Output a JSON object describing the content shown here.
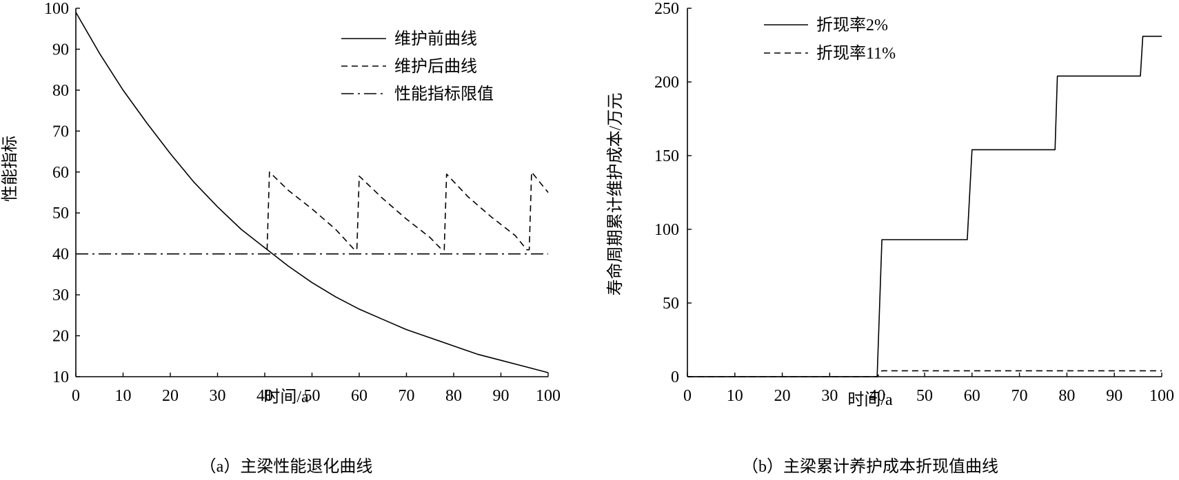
{
  "chart_data": [
    {
      "type": "line",
      "caption": "（a）主梁性能退化曲线",
      "xlabel": "时间/a",
      "ylabel": "性能指标",
      "xlim": [
        0,
        100
      ],
      "ylim": [
        10,
        100
      ],
      "xticks": [
        0,
        10,
        20,
        30,
        40,
        50,
        60,
        70,
        80,
        90,
        100
      ],
      "yticks": [
        10,
        20,
        30,
        40,
        50,
        60,
        70,
        80,
        90,
        100
      ],
      "grid": false,
      "legend": "top-right",
      "series": [
        {
          "name": "维护前曲线",
          "style": "solid",
          "x": [
            0,
            5,
            10,
            15,
            20,
            25,
            30,
            35,
            40,
            45,
            50,
            55,
            60,
            65,
            70,
            75,
            80,
            85,
            90,
            95,
            100
          ],
          "y": [
            99,
            89,
            80,
            72,
            64.5,
            57.5,
            51.5,
            46,
            41.5,
            37,
            33,
            29.5,
            26.5,
            24,
            21.5,
            19.5,
            17.5,
            15.5,
            14,
            12.5,
            11
          ]
        },
        {
          "name": "维护后曲线",
          "style": "dashed",
          "x": [
            40.5,
            41,
            45,
            50,
            55,
            59,
            59.5,
            60,
            65,
            70,
            75,
            77.5,
            78,
            78.5,
            83,
            88,
            93,
            95.5,
            96,
            96.5,
            100
          ],
          "y": [
            41,
            60,
            55.5,
            51,
            46,
            41,
            41,
            59,
            53.5,
            48.5,
            44,
            41,
            41,
            59.5,
            54,
            49,
            44.5,
            41,
            41,
            60,
            55
          ]
        },
        {
          "name": "性能指标限值",
          "style": "dashdot",
          "x": [
            0,
            100
          ],
          "y": [
            40,
            40
          ]
        }
      ]
    },
    {
      "type": "line",
      "caption": "（b）主梁累计养护成本折现值曲线",
      "xlabel": "时间/a",
      "ylabel": "寿命周期累计维护成本/万元",
      "xlim": [
        0,
        100
      ],
      "ylim": [
        0,
        250
      ],
      "xticks": [
        0,
        10,
        20,
        30,
        40,
        50,
        60,
        70,
        80,
        90,
        100
      ],
      "yticks": [
        0,
        50,
        100,
        150,
        200,
        250
      ],
      "grid": false,
      "legend": "top-left",
      "series": [
        {
          "name": "折现率2%",
          "style": "solid",
          "x": [
            0,
            40,
            41,
            59,
            60,
            77.5,
            78,
            95.5,
            96,
            100
          ],
          "y": [
            0,
            0,
            93,
            93,
            154,
            154,
            204,
            204,
            231,
            231
          ]
        },
        {
          "name": "折现率11%",
          "style": "dashed",
          "x": [
            0,
            40,
            41,
            100
          ],
          "y": [
            0,
            0,
            4,
            4
          ]
        }
      ]
    }
  ]
}
